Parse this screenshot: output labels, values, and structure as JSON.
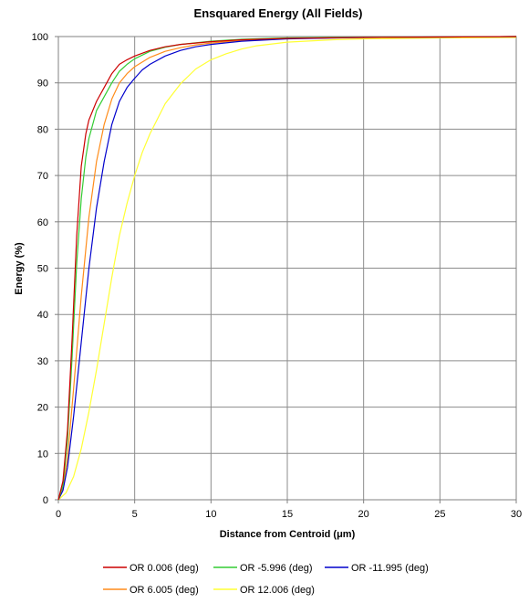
{
  "chart_data": {
    "type": "line",
    "title": "Ensquared Energy (All Fields)",
    "xlabel": "Distance from Centroid (μm)",
    "ylabel": "Energy (%)",
    "xlim": [
      0,
      30
    ],
    "ylim": [
      0,
      100
    ],
    "xticks": [
      "0",
      "5",
      "10",
      "15",
      "20",
      "25",
      "30"
    ],
    "yticks": [
      "0",
      "10",
      "20",
      "30",
      "40",
      "50",
      "60",
      "70",
      "80",
      "90",
      "100"
    ],
    "grid": true,
    "legend_position": "bottom",
    "series": [
      {
        "name": "OR 0.006 (deg)",
        "color": "#cc0000",
        "x": [
          0,
          0.3,
          0.6,
          0.9,
          1.2,
          1.5,
          1.8,
          2.0,
          2.5,
          3.0,
          3.5,
          4.0,
          4.5,
          5.0,
          6.0,
          7.0,
          8.0,
          10.0,
          12.0,
          15.0,
          20.0,
          25.0,
          30.0
        ],
        "y": [
          0,
          4,
          15,
          35,
          57,
          72,
          79,
          82,
          86,
          89,
          92,
          94,
          95,
          95.8,
          97,
          97.8,
          98.3,
          98.9,
          99.3,
          99.6,
          99.8,
          99.9,
          100
        ]
      },
      {
        "name": "OR -5.996 (deg)",
        "color": "#33cc33",
        "x": [
          0,
          0.3,
          0.6,
          0.9,
          1.2,
          1.5,
          1.8,
          2.0,
          2.5,
          3.0,
          3.5,
          4.0,
          4.5,
          5.0,
          6.0,
          7.0,
          8.0,
          10.0,
          12.0,
          15.0,
          20.0,
          25.0,
          30.0
        ],
        "y": [
          0,
          3,
          13,
          31,
          51,
          65,
          74,
          78,
          84,
          87,
          90,
          92.5,
          94,
          95.2,
          96.8,
          97.7,
          98.3,
          99.0,
          99.4,
          99.7,
          99.85,
          99.9,
          100
        ]
      },
      {
        "name": "OR -11.995 (deg)",
        "color": "#0000cc",
        "x": [
          0,
          0.3,
          0.6,
          1.0,
          1.5,
          2.0,
          2.5,
          3.0,
          3.5,
          4.0,
          4.5,
          5.0,
          5.5,
          6.0,
          7.0,
          8.0,
          9.0,
          10.0,
          12.0,
          15.0,
          20.0,
          25.0,
          30.0
        ],
        "y": [
          0,
          2,
          7,
          18,
          34,
          50,
          63,
          73,
          81,
          86,
          89,
          91,
          92.8,
          94,
          95.8,
          97,
          97.8,
          98.3,
          99,
          99.5,
          99.8,
          99.9,
          100
        ]
      },
      {
        "name": "OR 6.005 (deg)",
        "color": "#ff8c1a",
        "x": [
          0,
          0.3,
          0.6,
          1.0,
          1.5,
          2.0,
          2.5,
          3.0,
          3.5,
          4.0,
          4.5,
          5.0,
          6.0,
          7.0,
          8.0,
          9.0,
          10.0,
          12.0,
          15.0,
          20.0,
          25.0,
          30.0
        ],
        "y": [
          0,
          2.5,
          9,
          24,
          44,
          61,
          73,
          81,
          86.5,
          90,
          92,
          93.5,
          95.5,
          96.8,
          97.6,
          98.2,
          98.6,
          99.2,
          99.6,
          99.8,
          99.9,
          100
        ]
      },
      {
        "name": "OR 12.006 (deg)",
        "color": "#ffff33",
        "x": [
          0,
          0.5,
          1.0,
          1.5,
          2.0,
          2.5,
          3.0,
          3.5,
          4.0,
          4.5,
          5.0,
          5.5,
          6.0,
          7.0,
          8.0,
          9.0,
          10.0,
          11.0,
          12.0,
          13.0,
          15.0,
          18.0,
          20.0,
          25.0,
          30.0
        ],
        "y": [
          0,
          1.5,
          5,
          11,
          19,
          28,
          38,
          48,
          57,
          64,
          70,
          75,
          79,
          85.5,
          89.8,
          93,
          95,
          96.3,
          97.3,
          98,
          98.8,
          99.3,
          99.5,
          99.7,
          99.8
        ]
      }
    ]
  }
}
